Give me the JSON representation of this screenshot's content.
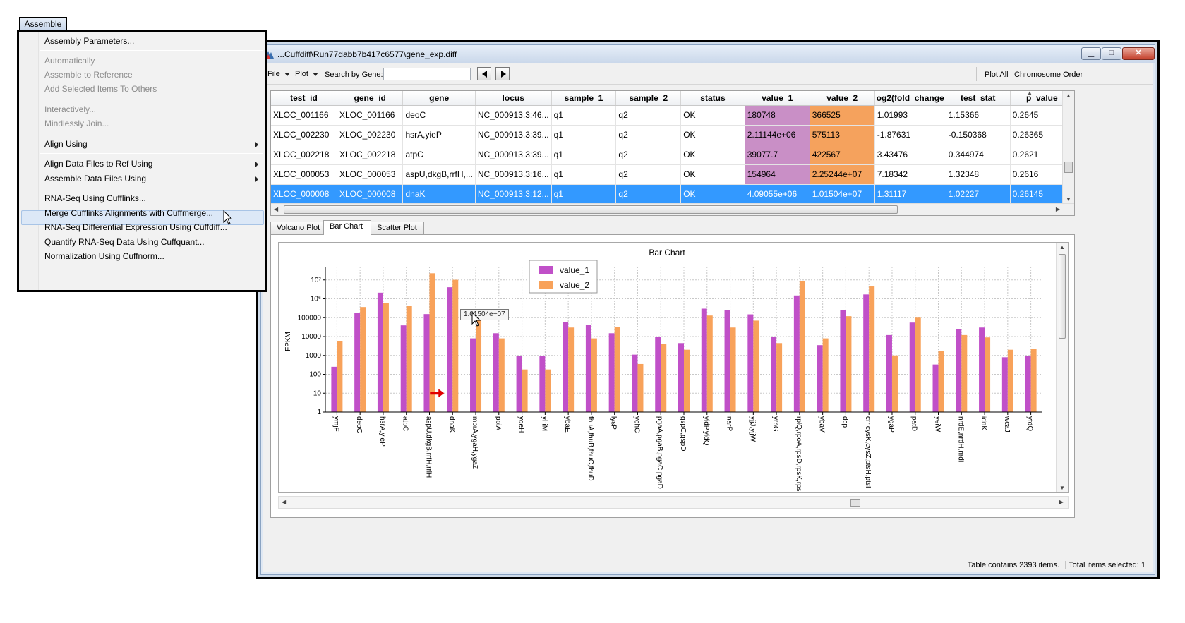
{
  "window": {
    "title": "...Cuffdiff\\Run77dabb7b417c6577\\gene_exp.diff",
    "min_glyph": "▁",
    "max_glyph": "□",
    "close_glyph": "✕"
  },
  "toolbar": {
    "file": "File",
    "plot": "Plot",
    "search_label": "Search by Gene:",
    "search_value": "",
    "plot_all": "Plot All",
    "chromosome_order": "Chromosome Order"
  },
  "table": {
    "columns": [
      "test_id",
      "gene_id",
      "gene",
      "locus",
      "sample_1",
      "sample_2",
      "status",
      "value_1",
      "value_2",
      "og2(fold_change",
      "test_stat",
      "p_value"
    ],
    "rows": [
      [
        "XLOC_001166",
        "XLOC_001166",
        "deoC",
        "NC_000913.3:46...",
        "q1",
        "q2",
        "OK",
        "180748",
        "366525",
        "1.01993",
        "1.15366",
        "0.2645"
      ],
      [
        "XLOC_002230",
        "XLOC_002230",
        "hsrA,yieP",
        "NC_000913.3:39...",
        "q1",
        "q2",
        "OK",
        "2.11144e+06",
        "575113",
        "-1.87631",
        "-0.150368",
        "0.26365"
      ],
      [
        "XLOC_002218",
        "XLOC_002218",
        "atpC",
        "NC_000913.3:39...",
        "q1",
        "q2",
        "OK",
        "39077.7",
        "422567",
        "3.43476",
        "0.344974",
        "0.2621"
      ],
      [
        "XLOC_000053",
        "XLOC_000053",
        "aspU,dkgB,rrfH,...",
        "NC_000913.3:16...",
        "q1",
        "q2",
        "OK",
        "154964",
        "2.25244e+07",
        "7.18342",
        "1.32348",
        "0.2616"
      ],
      [
        "XLOC_000008",
        "XLOC_000008",
        "dnaK",
        "NC_000913.3:12...",
        "q1",
        "q2",
        "OK",
        "4.09055e+06",
        "1.01504e+07",
        "1.31117",
        "1.02227",
        "0.26145"
      ]
    ],
    "selected_row": 4
  },
  "tabs": [
    "Volcano Plot",
    "Bar Chart",
    "Scatter Plot"
  ],
  "active_tab": "Bar Chart",
  "tooltip": "1.01504e+07",
  "status": {
    "count": "Table contains 2393 items.",
    "selected": "Total items selected: 1"
  },
  "menu": {
    "title": "Assemble",
    "items": [
      {
        "label": "Assembly Parameters...",
        "enabled": true
      },
      {
        "label": "Automatically",
        "enabled": false
      },
      {
        "label": "Assemble to Reference",
        "enabled": false
      },
      {
        "label": "Add Selected Items To Others",
        "enabled": false
      },
      {
        "label": "Interactively...",
        "enabled": false
      },
      {
        "label": "Mindlessly Join...",
        "enabled": false
      },
      {
        "label": "Align Using",
        "enabled": true,
        "submenu": true
      },
      {
        "label": "Align Data Files to Ref Using",
        "enabled": true,
        "submenu": true
      },
      {
        "label": "Assemble Data Files Using",
        "enabled": true,
        "submenu": true
      },
      {
        "label": "RNA-Seq Using Cufflinks...",
        "enabled": true,
        "highlighted": true
      },
      {
        "label": "Merge Cufflinks Alignments with Cuffmerge...",
        "enabled": true
      },
      {
        "label": "RNA-Seq Differential Expression Using Cuffdiff...",
        "enabled": true
      },
      {
        "label": "Quantify RNA-Seq Data Using Cuffquant...",
        "enabled": true
      },
      {
        "label": "Normalization Using Cuffnorm...",
        "enabled": true
      }
    ]
  },
  "colors": {
    "value_1": "#c050c8",
    "value_2": "#f8a25a",
    "selection": "#3399ff",
    "annotation_arrow": "#e00000"
  },
  "chart_data": {
    "type": "bar",
    "title": "Bar Chart",
    "ylabel": "FPKM",
    "xlabel": "",
    "yscale": "log",
    "ylim": [
      1,
      30000000
    ],
    "ytick_labels": [
      "1",
      "10",
      "100",
      "1000",
      "10000",
      "100000",
      "10⁶",
      "10⁷"
    ],
    "grid": true,
    "legend_position": "top-center",
    "categories": [
      "ymjF",
      "deoC",
      "hsrA,yieP",
      "atpC",
      "aspU,dkgB,rrfH,rrlH",
      "dnaK",
      "mprA,ygaH,ygaZ",
      "ppiA",
      "yqeH",
      "yhiM",
      "ybaE",
      "fhuA,fhuB,fhuC,fhuD",
      "lysP",
      "yehC",
      "pgaA,pgaB,pgaC,pgaD",
      "gspC,gspD",
      "yidP,yidQ",
      "narP",
      "yjjJ,yjjW",
      "yrbG",
      "rplQ,rpoA,rpsD,rpsK,rpsM",
      "ybaV",
      "dcp",
      "crr,cysK,cysZ,ptsH,ptsI",
      "ygaP",
      "patD",
      "yeiW",
      "nrdE,nrdH,nrdI",
      "idnK",
      "wcaJ",
      "yfdQ"
    ],
    "series": [
      {
        "name": "value_1",
        "values": [
          250,
          180748,
          2111440,
          39078,
          154964,
          4090550,
          8000,
          15000,
          900,
          900,
          60000,
          40000,
          15000,
          1100,
          10000,
          4500,
          300000,
          250000,
          150000,
          10000,
          1500000,
          3500,
          250000,
          1700000,
          12000,
          55000,
          330,
          25000,
          30000,
          800,
          900
        ]
      },
      {
        "name": "value_2",
        "values": [
          5500,
          366525,
          575113,
          422567,
          22524400,
          10150400,
          100000,
          8000,
          180,
          180,
          30000,
          8000,
          32000,
          350,
          4000,
          2000,
          130000,
          30000,
          70000,
          4500,
          9000000,
          8000,
          120000,
          4500000,
          1000,
          100000,
          1700,
          12000,
          9000,
          2000,
          2200
        ]
      }
    ],
    "annotation_arrow_category": "dnaK"
  }
}
